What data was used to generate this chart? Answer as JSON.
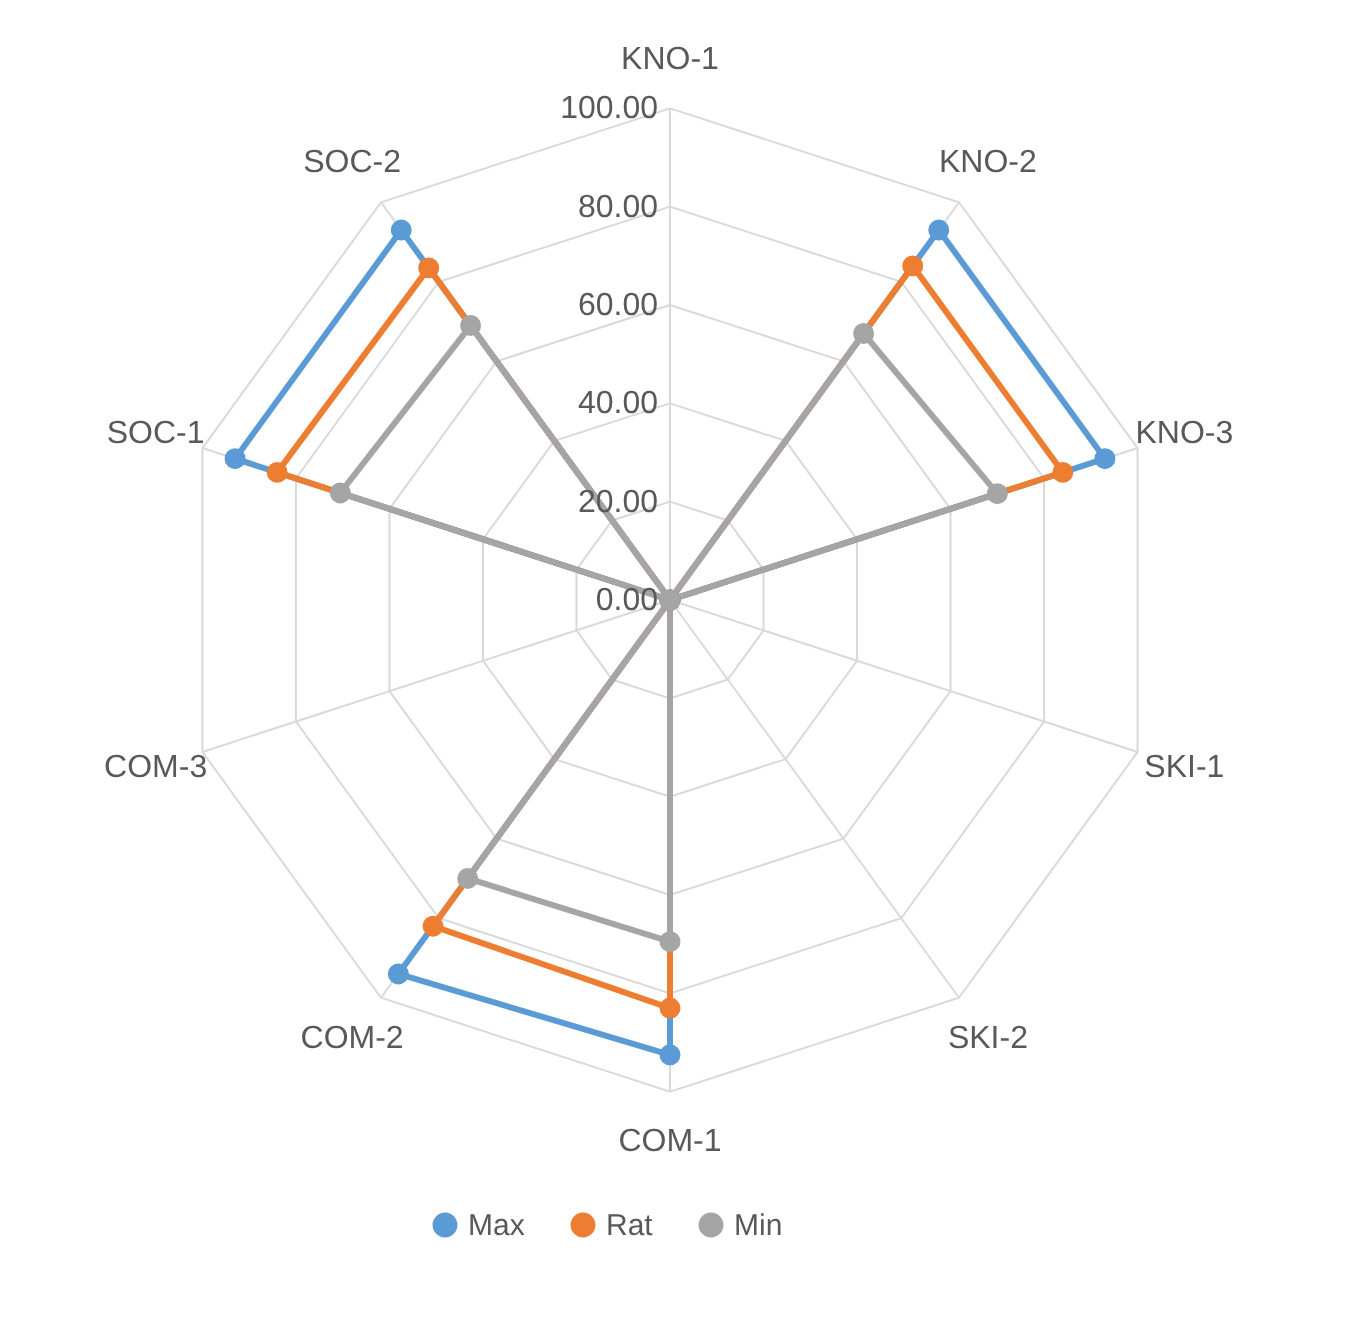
{
  "chart_data": {
    "type": "radar",
    "categories": [
      "KNO-1",
      "KNO-2",
      "KNO-3",
      "SKI-1",
      "SKI-2",
      "COM-1",
      "COM-2",
      "COM-3",
      "SOC-1",
      "SOC-2"
    ],
    "series": [
      {
        "name": "Max",
        "color": "#5b9bd5",
        "values": [
          0,
          93,
          93,
          0,
          0,
          92.5,
          94,
          0,
          93,
          93
        ]
      },
      {
        "name": "Rat",
        "color": "#ed7d31",
        "values": [
          0,
          84,
          84,
          0,
          0,
          83,
          82,
          0,
          84,
          83.5
        ]
      },
      {
        "name": "Min",
        "color": "#a5a5a5",
        "values": [
          0,
          67,
          70,
          0,
          0,
          69.5,
          70,
          0,
          70.5,
          69
        ]
      }
    ],
    "ylim": [
      0,
      100
    ],
    "yticks": [
      {
        "value": 0,
        "label": "0.00"
      },
      {
        "value": 20,
        "label": "20.00"
      },
      {
        "value": 40,
        "label": "40.00"
      },
      {
        "value": 60,
        "label": "60.00"
      },
      {
        "value": 80,
        "label": "80.00"
      },
      {
        "value": 100,
        "label": "100.00"
      }
    ],
    "grid": true,
    "legend": "bottom",
    "marker": "circle"
  }
}
